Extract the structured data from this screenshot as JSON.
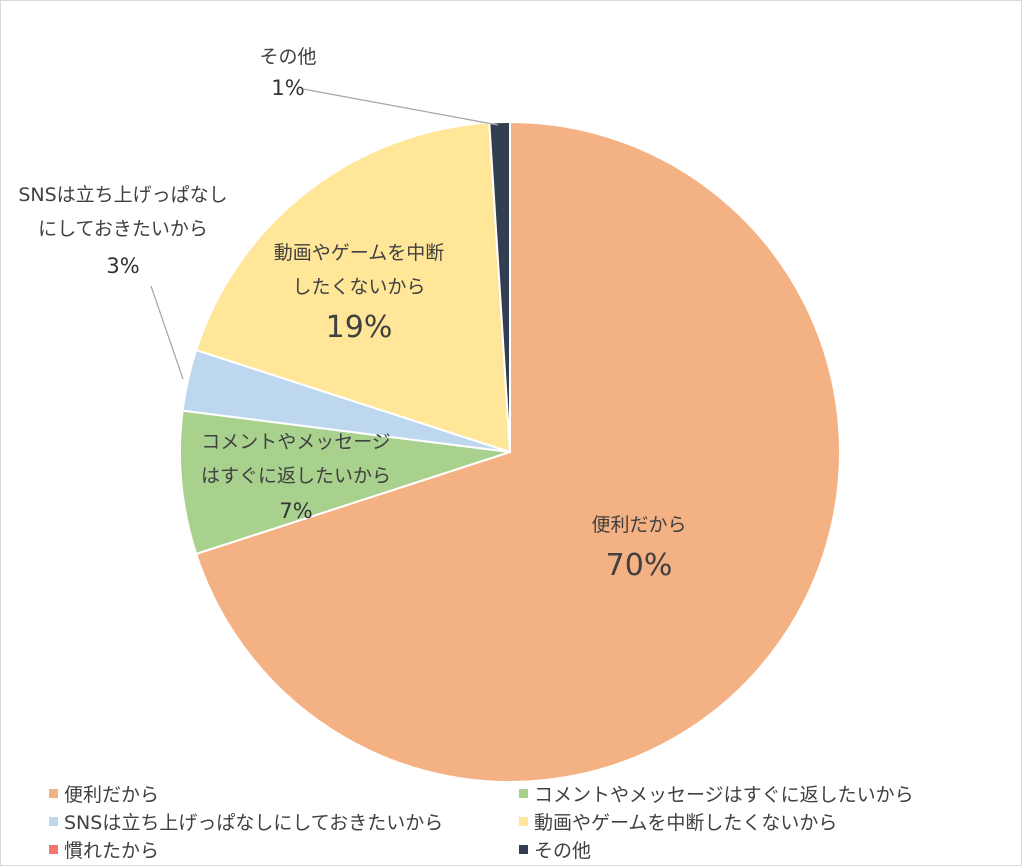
{
  "chart_data": {
    "type": "pie",
    "slices": [
      {
        "name": "便利だから",
        "value": 70,
        "percent_label": "70%",
        "color": "#F4B183",
        "label_lines": [
          "便利だから"
        ]
      },
      {
        "name": "コメントやメッセージはすぐに返したいから",
        "value": 7,
        "percent_label": "7%",
        "color": "#A9D18E",
        "label_lines": [
          "コメントやメッセージ",
          "はすぐに返したいから"
        ]
      },
      {
        "name": "SNSは立ち上げっぱなしにしておきたいから",
        "value": 3,
        "percent_label": "3%",
        "color": "#BDD7EE",
        "label_lines": [
          "SNSは立ち上げっぱなし",
          "にしておきたいから"
        ]
      },
      {
        "name": "動画やゲームを中断したくないから",
        "value": 19,
        "percent_label": "19%",
        "color": "#FFE699",
        "label_lines": [
          "動画やゲームを中断",
          "したくないから"
        ]
      },
      {
        "name": "慣れたから",
        "value": 0,
        "percent_label": "",
        "color": "#F4756F",
        "label_lines": []
      },
      {
        "name": "その他",
        "value": 1,
        "percent_label": "1%",
        "color": "#333F50",
        "label_lines": [
          "その他"
        ]
      }
    ],
    "legend_position": "bottom",
    "legend": [
      {
        "label": "便利だから",
        "color": "#F4B183"
      },
      {
        "label": "コメントやメッセージはすぐに返したいから",
        "color": "#A9D18E"
      },
      {
        "label": "SNSは立ち上げっぱなしにしておきたいから",
        "color": "#BDD7EE"
      },
      {
        "label": "動画やゲームを中断したくないから",
        "color": "#FFE699"
      },
      {
        "label": "慣れたから",
        "color": "#F4756F"
      },
      {
        "label": "その他",
        "color": "#333F50"
      }
    ]
  }
}
